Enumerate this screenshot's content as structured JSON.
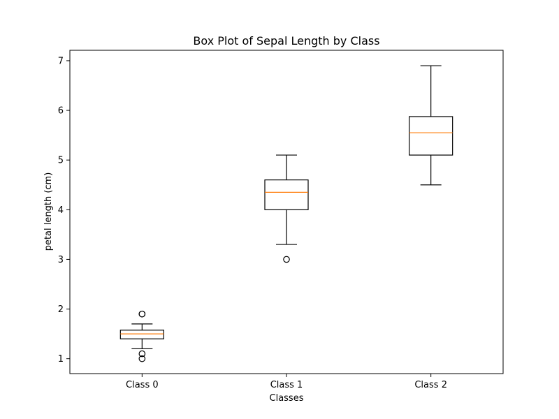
{
  "chart_data": {
    "type": "box",
    "title": "Box Plot of Sepal Length by Class",
    "xlabel": "Classes",
    "ylabel": "petal length (cm)",
    "categories": [
      "Class 0",
      "Class 1",
      "Class 2"
    ],
    "ylim": [
      0.7,
      7.21
    ],
    "yticks": [
      1,
      2,
      3,
      4,
      5,
      6,
      7
    ],
    "grid": false,
    "colors": {
      "box": "#000000",
      "median": "#ff7f0e",
      "outlier": "#000000",
      "frame": "#000000"
    },
    "boxes": [
      {
        "category": "Class 0",
        "whisker_low": 1.2,
        "q1": 1.4,
        "median": 1.5,
        "q3": 1.575,
        "whisker_high": 1.7,
        "outliers": [
          1.0,
          1.1,
          1.9,
          1.9
        ]
      },
      {
        "category": "Class 1",
        "whisker_low": 3.3,
        "q1": 4.0,
        "median": 4.35,
        "q3": 4.6,
        "whisker_high": 5.1,
        "outliers": [
          3.0
        ]
      },
      {
        "category": "Class 2",
        "whisker_low": 4.5,
        "q1": 5.1,
        "median": 5.55,
        "q3": 5.875,
        "whisker_high": 6.9,
        "outliers": []
      }
    ]
  }
}
